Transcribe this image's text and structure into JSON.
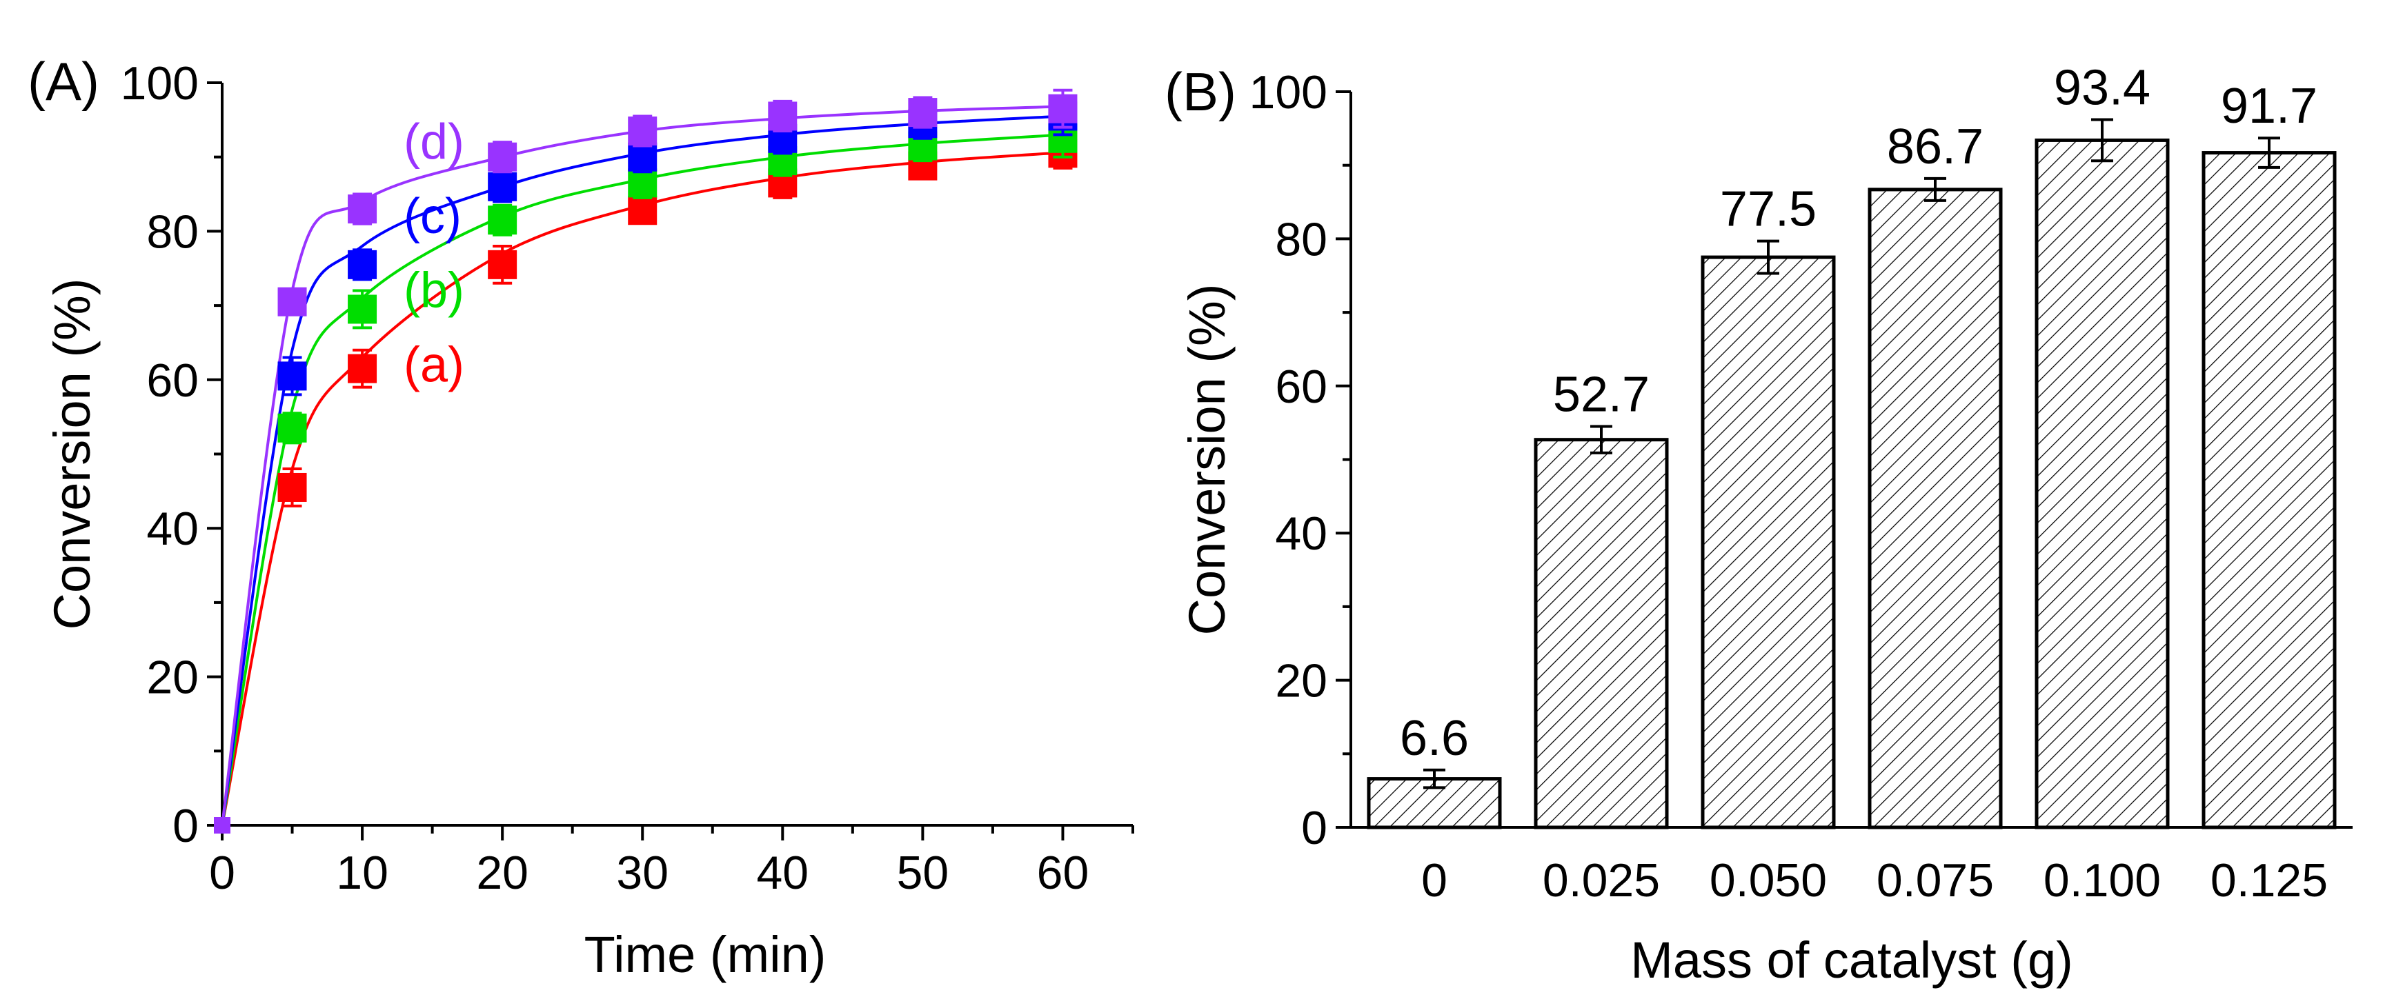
{
  "chart_data": [
    {
      "panel_label": "(A)",
      "type": "scatter",
      "xlabel": "Time (min)",
      "ylabel": "Conversion (%)",
      "xlim": [
        0,
        65
      ],
      "ylim": [
        0,
        100
      ],
      "xticks": [
        0,
        10,
        20,
        30,
        40,
        50,
        60
      ],
      "yticks": [
        0,
        20,
        40,
        60,
        80,
        100
      ],
      "grid": false,
      "x": [
        0,
        5,
        10,
        20,
        30,
        40,
        50,
        60
      ],
      "series": [
        {
          "label": "(a)",
          "color": "#ff0000",
          "values": [
            0,
            45.5,
            61.5,
            75.5,
            82.8,
            86.5,
            88.8,
            90.5
          ],
          "errors": [
            0,
            2.5,
            2.5,
            2.5,
            1.5,
            2,
            1.5,
            2
          ],
          "fit": [
            0,
            48,
            63,
            77,
            83.5,
            87.2,
            89.3,
            90.6
          ]
        },
        {
          "label": "(b)",
          "color": "#00dd00",
          "values": [
            0,
            53.5,
            69.5,
            81.5,
            86.5,
            89.5,
            91.5,
            92.5
          ],
          "errors": [
            0,
            2,
            2.5,
            2,
            2,
            2,
            2,
            2.5
          ],
          "fit": [
            0,
            56,
            71,
            82,
            87,
            90,
            91.8,
            93
          ]
        },
        {
          "label": "(c)",
          "color": "#0000ff",
          "values": [
            0,
            60.5,
            75.5,
            86,
            90,
            92.5,
            94.5,
            95.5
          ],
          "errors": [
            0,
            2.5,
            2,
            2,
            2,
            2,
            2,
            2.5
          ],
          "fit": [
            0,
            64,
            78,
            86,
            90.5,
            93,
            94.5,
            95.5
          ]
        },
        {
          "label": "(d)",
          "color": "#9933ff",
          "values": [
            0,
            70.5,
            83,
            90,
            93.5,
            95.5,
            96,
            96.5
          ],
          "errors": [
            0,
            1.5,
            2,
            2,
            2,
            2,
            2,
            2.5
          ],
          "fit": [
            0,
            72,
            84,
            90,
            93.5,
            95.2,
            96.2,
            96.8
          ]
        }
      ]
    },
    {
      "panel_label": "(B)",
      "type": "bar",
      "xlabel": "Mass of catalyst (g)",
      "ylabel": "Conversion (%)",
      "ylim": [
        0,
        100
      ],
      "yticks": [
        0,
        20,
        40,
        60,
        80,
        100
      ],
      "grid": false,
      "categories": [
        "0",
        "0.025",
        "0.050",
        "0.075",
        "0.100",
        "0.125"
      ],
      "values": [
        6.6,
        52.7,
        77.5,
        86.7,
        93.4,
        91.7
      ],
      "errors": [
        1.2,
        1.8,
        2.2,
        1.5,
        2.8,
        2.0
      ],
      "data_labels": [
        "6.6",
        "52.7",
        "77.5",
        "86.7",
        "93.4",
        "91.7"
      ],
      "bar_fill": "hatched"
    }
  ]
}
